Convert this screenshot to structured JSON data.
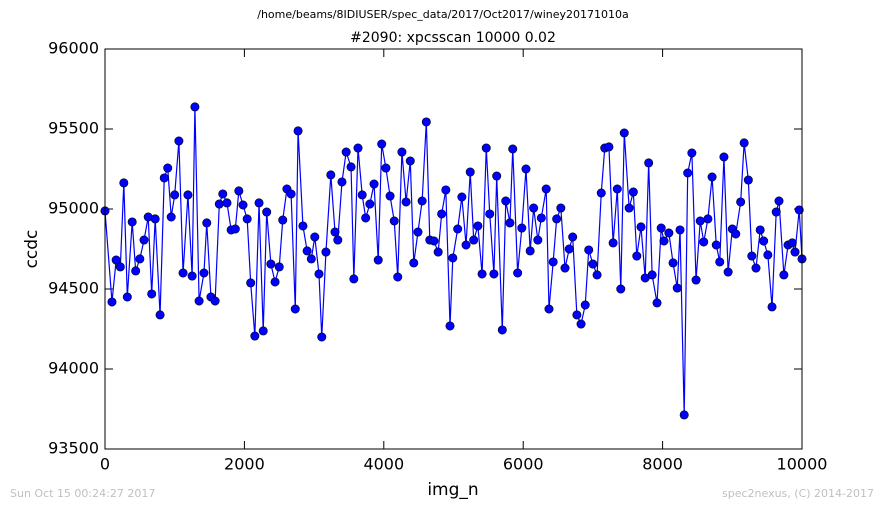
{
  "chart_data": {
    "type": "line",
    "suptitle": "/home/beams/8IDIUSER/spec_data/2017/Oct2017/winey20171010a",
    "title": "#2090: xpcsscan 10000 0.02",
    "xlabel": "img_n",
    "ylabel": "ccdc",
    "footer_left": "Sun Oct 15 00:24:27 2017",
    "footer_right": "spec2nexus, (C) 2014-2017",
    "xlim": [
      0,
      10000
    ],
    "ylim": [
      93500,
      96000
    ],
    "xticks": [
      0,
      2000,
      4000,
      6000,
      8000,
      10000
    ],
    "yticks": [
      93500,
      94000,
      94500,
      95000,
      95500,
      96000
    ],
    "grid": false,
    "x": [
      0,
      100,
      160,
      220,
      270,
      320,
      390,
      440,
      500,
      560,
      620,
      670,
      720,
      790,
      850,
      900,
      950,
      1000,
      1060,
      1120,
      1190,
      1250,
      1290,
      1350,
      1420,
      1460,
      1520,
      1580,
      1640,
      1690,
      1750,
      1810,
      1870,
      1920,
      1980,
      2040,
      2090,
      2150,
      2210,
      2270,
      2320,
      2380,
      2440,
      2500,
      2550,
      2610,
      2670,
      2730,
      2770,
      2840,
      2900,
      2960,
      3010,
      3070,
      3110,
      3170,
      3240,
      3300,
      3340,
      3400,
      3460,
      3530,
      3570,
      3630,
      3690,
      3740,
      3800,
      3860,
      3920,
      3970,
      4030,
      4090,
      4150,
      4200,
      4260,
      4320,
      4380,
      4430,
      4490,
      4550,
      4610,
      4660,
      4720,
      4780,
      4830,
      4890,
      4950,
      4990,
      5060,
      5120,
      5180,
      5240,
      5290,
      5350,
      5410,
      5470,
      5520,
      5580,
      5620,
      5700,
      5750,
      5810,
      5850,
      5920,
      5980,
      6040,
      6100,
      6150,
      6210,
      6260,
      6330,
      6370,
      6430,
      6480,
      6540,
      6600,
      6660,
      6710,
      6770,
      6830,
      6890,
      6940,
      7000,
      7060,
      7120,
      7170,
      7230,
      7290,
      7350,
      7400,
      7450,
      7520,
      7580,
      7630,
      7690,
      7750,
      7800,
      7850,
      7920,
      7980,
      8020,
      8090,
      8150,
      8210,
      8250,
      8310,
      8360,
      8420,
      8480,
      8540,
      8590,
      8650,
      8710,
      8770,
      8820,
      8880,
      8940,
      9000,
      9050,
      9120,
      9170,
      9230,
      9280,
      9340,
      9400,
      9450,
      9510,
      9570,
      9630,
      9670,
      9740,
      9800,
      9860,
      9900,
      9960,
      10000
    ],
    "series": [
      {
        "color": "#0000ff",
        "values": [
          94988,
          94419,
          94681,
          94638,
          95163,
          94450,
          94919,
          94613,
          94688,
          94806,
          94950,
          94469,
          94938,
          94338,
          95194,
          95256,
          94950,
          95088,
          95425,
          94600,
          95088,
          94581,
          95638,
          94425,
          94600,
          94913,
          94450,
          94425,
          95031,
          95094,
          95038,
          94869,
          94875,
          95113,
          95025,
          94938,
          94538,
          94206,
          95038,
          94238,
          94981,
          94656,
          94544,
          94638,
          94931,
          95125,
          95094,
          94375,
          95488,
          94894,
          94738,
          94688,
          94825,
          94594,
          94200,
          94731,
          95213,
          94856,
          94806,
          95169,
          95356,
          95263,
          94563,
          95381,
          95088,
          94944,
          95031,
          95156,
          94681,
          95406,
          95256,
          95081,
          94925,
          94575,
          95356,
          95044,
          95300,
          94663,
          94856,
          95050,
          95544,
          94806,
          94800,
          94731,
          94969,
          95119,
          94269,
          94694,
          94875,
          95075,
          94775,
          95231,
          94806,
          94894,
          94594,
          95381,
          94969,
          94594,
          95206,
          94244,
          95050,
          94913,
          95375,
          94600,
          94881,
          95250,
          94738,
          95006,
          94806,
          94944,
          95125,
          94375,
          94669,
          94938,
          95006,
          94631,
          94750,
          94825,
          94338,
          94281,
          94400,
          94744,
          94656,
          94588,
          95100,
          95381,
          95388,
          94788,
          95125,
          94500,
          95475,
          95006,
          95106,
          94706,
          94888,
          94569,
          95288,
          94588,
          94413,
          94881,
          94800,
          94850,
          94663,
          94506,
          94869,
          93713,
          95225,
          95350,
          94556,
          94925,
          94794,
          94938,
          95200,
          94775,
          94669,
          95325,
          94606,
          94875,
          94844,
          95044,
          95413,
          95181,
          94706,
          94631,
          94869,
          94800,
          94713,
          94388,
          94981,
          95050,
          94588,
          94775,
          94788,
          94731,
          94994,
          94688
        ]
      }
    ]
  }
}
